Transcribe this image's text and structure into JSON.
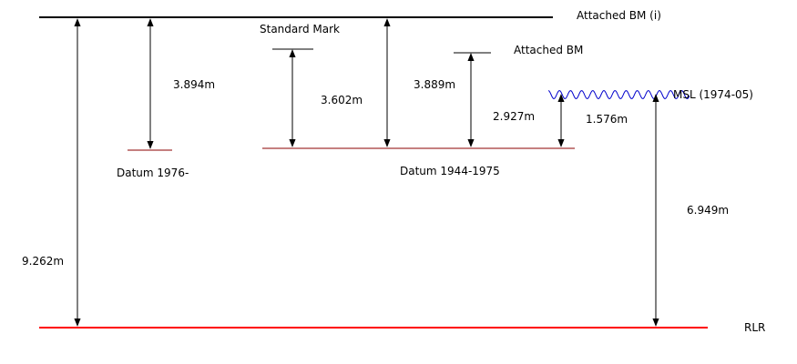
{
  "labels": {
    "attached_bm_i": "Attached BM (i)",
    "standard_mark": "Standard Mark",
    "attached_bm": "Attached BM",
    "msl": "MSL (1974-05)",
    "datum_1976": "Datum 1976-",
    "datum_1944_1975": "Datum 1944-1975",
    "rlr": "RLR"
  },
  "measurements": {
    "bm_i_to_datum_1976": "3.894m",
    "standard_mark_to_datum_1944": "3.602m",
    "bm_i_to_datum_1944": "3.889m",
    "attached_bm_to_datum_1944": "2.927m",
    "msl_to_datum_1944": "1.576m",
    "bm_i_to_rlr": "9.262m",
    "msl_to_rlr": "6.949m"
  },
  "colors": {
    "reference_line": "#000000",
    "datum_line": "#8b0000",
    "rlr_line": "#ff0000",
    "msl_wave": "#0000cc"
  }
}
